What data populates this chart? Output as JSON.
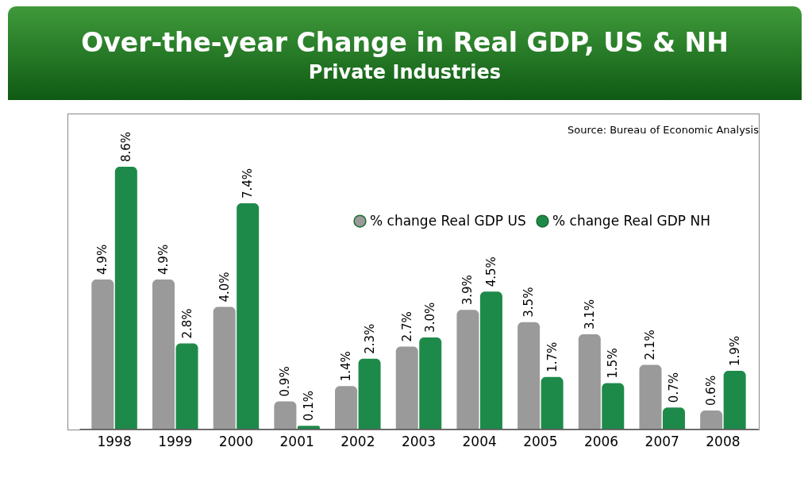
{
  "chart_data": {
    "type": "bar",
    "title": "Over-the-year Change in Real GDP, US & NH",
    "subtitle": "Private Industries",
    "categories": [
      "1998",
      "1999",
      "2000",
      "2001",
      "2002",
      "2003",
      "2004",
      "2005",
      "2006",
      "2007",
      "2008"
    ],
    "series": [
      {
        "name": "% change Real GDP US",
        "color": "#9a9a9a",
        "values": [
          4.9,
          4.9,
          4.0,
          0.9,
          1.4,
          2.7,
          3.9,
          3.5,
          3.1,
          2.1,
          0.6
        ],
        "value_labels": [
          "4.9%",
          "4.9%",
          "4.0%",
          "0.9%",
          "1.4%",
          "2.7%",
          "3.9%",
          "3.5%",
          "3.1%",
          "2.1%",
          "0.6%"
        ]
      },
      {
        "name": "% change Real GDP NH",
        "color": "#1e8a4a",
        "values": [
          8.6,
          2.8,
          7.4,
          0.1,
          2.3,
          3.0,
          4.5,
          1.7,
          1.5,
          0.7,
          1.9
        ],
        "value_labels": [
          "8.6%",
          "2.8%",
          "7.4%",
          "0.1%",
          "2.3%",
          "3.0%",
          "4.5%",
          "1.7%",
          "1.5%",
          "0.7%",
          "1.9%"
        ]
      }
    ],
    "annotations": [
      "Source:  Bureau of Economic Analysis"
    ],
    "legend": "top right",
    "tick_labels": "x",
    "grid": false
  }
}
